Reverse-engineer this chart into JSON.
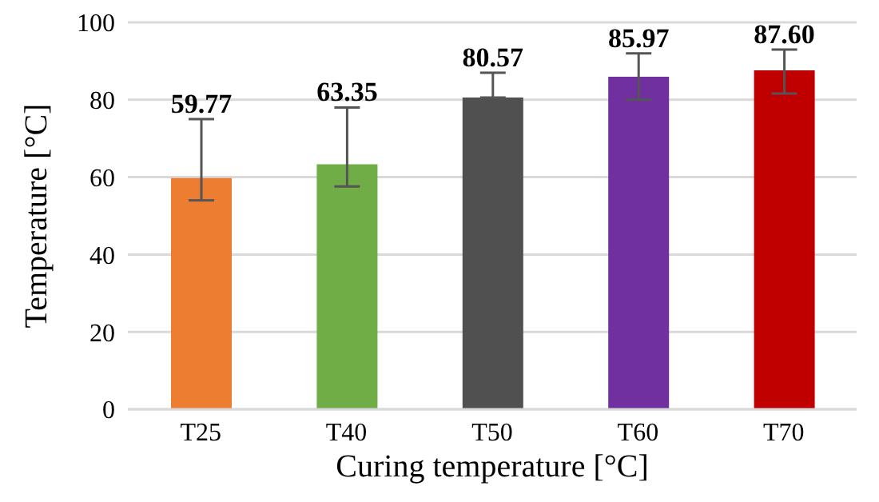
{
  "chart_data": {
    "type": "bar",
    "xlabel": "Curing temperature [°C]",
    "ylabel": "Temperature [°C]",
    "categories": [
      "T25",
      "T40",
      "T50",
      "T60",
      "T70"
    ],
    "values": [
      59.77,
      63.35,
      80.57,
      85.97,
      87.6
    ],
    "value_labels": [
      "59.77",
      "63.35",
      "80.57",
      "85.97",
      "87.60"
    ],
    "colors": [
      "#ed7d31",
      "#70ad47",
      "#505050",
      "#7030a0",
      "#c00000"
    ],
    "errors": [
      [
        54,
        75
      ],
      [
        57.6,
        78
      ],
      [
        80.57,
        87
      ],
      [
        80,
        92
      ],
      [
        81.6,
        93
      ]
    ],
    "ylim": [
      0,
      100
    ],
    "yticks": [
      0,
      20,
      40,
      60,
      80,
      100
    ],
    "grid": "y"
  }
}
